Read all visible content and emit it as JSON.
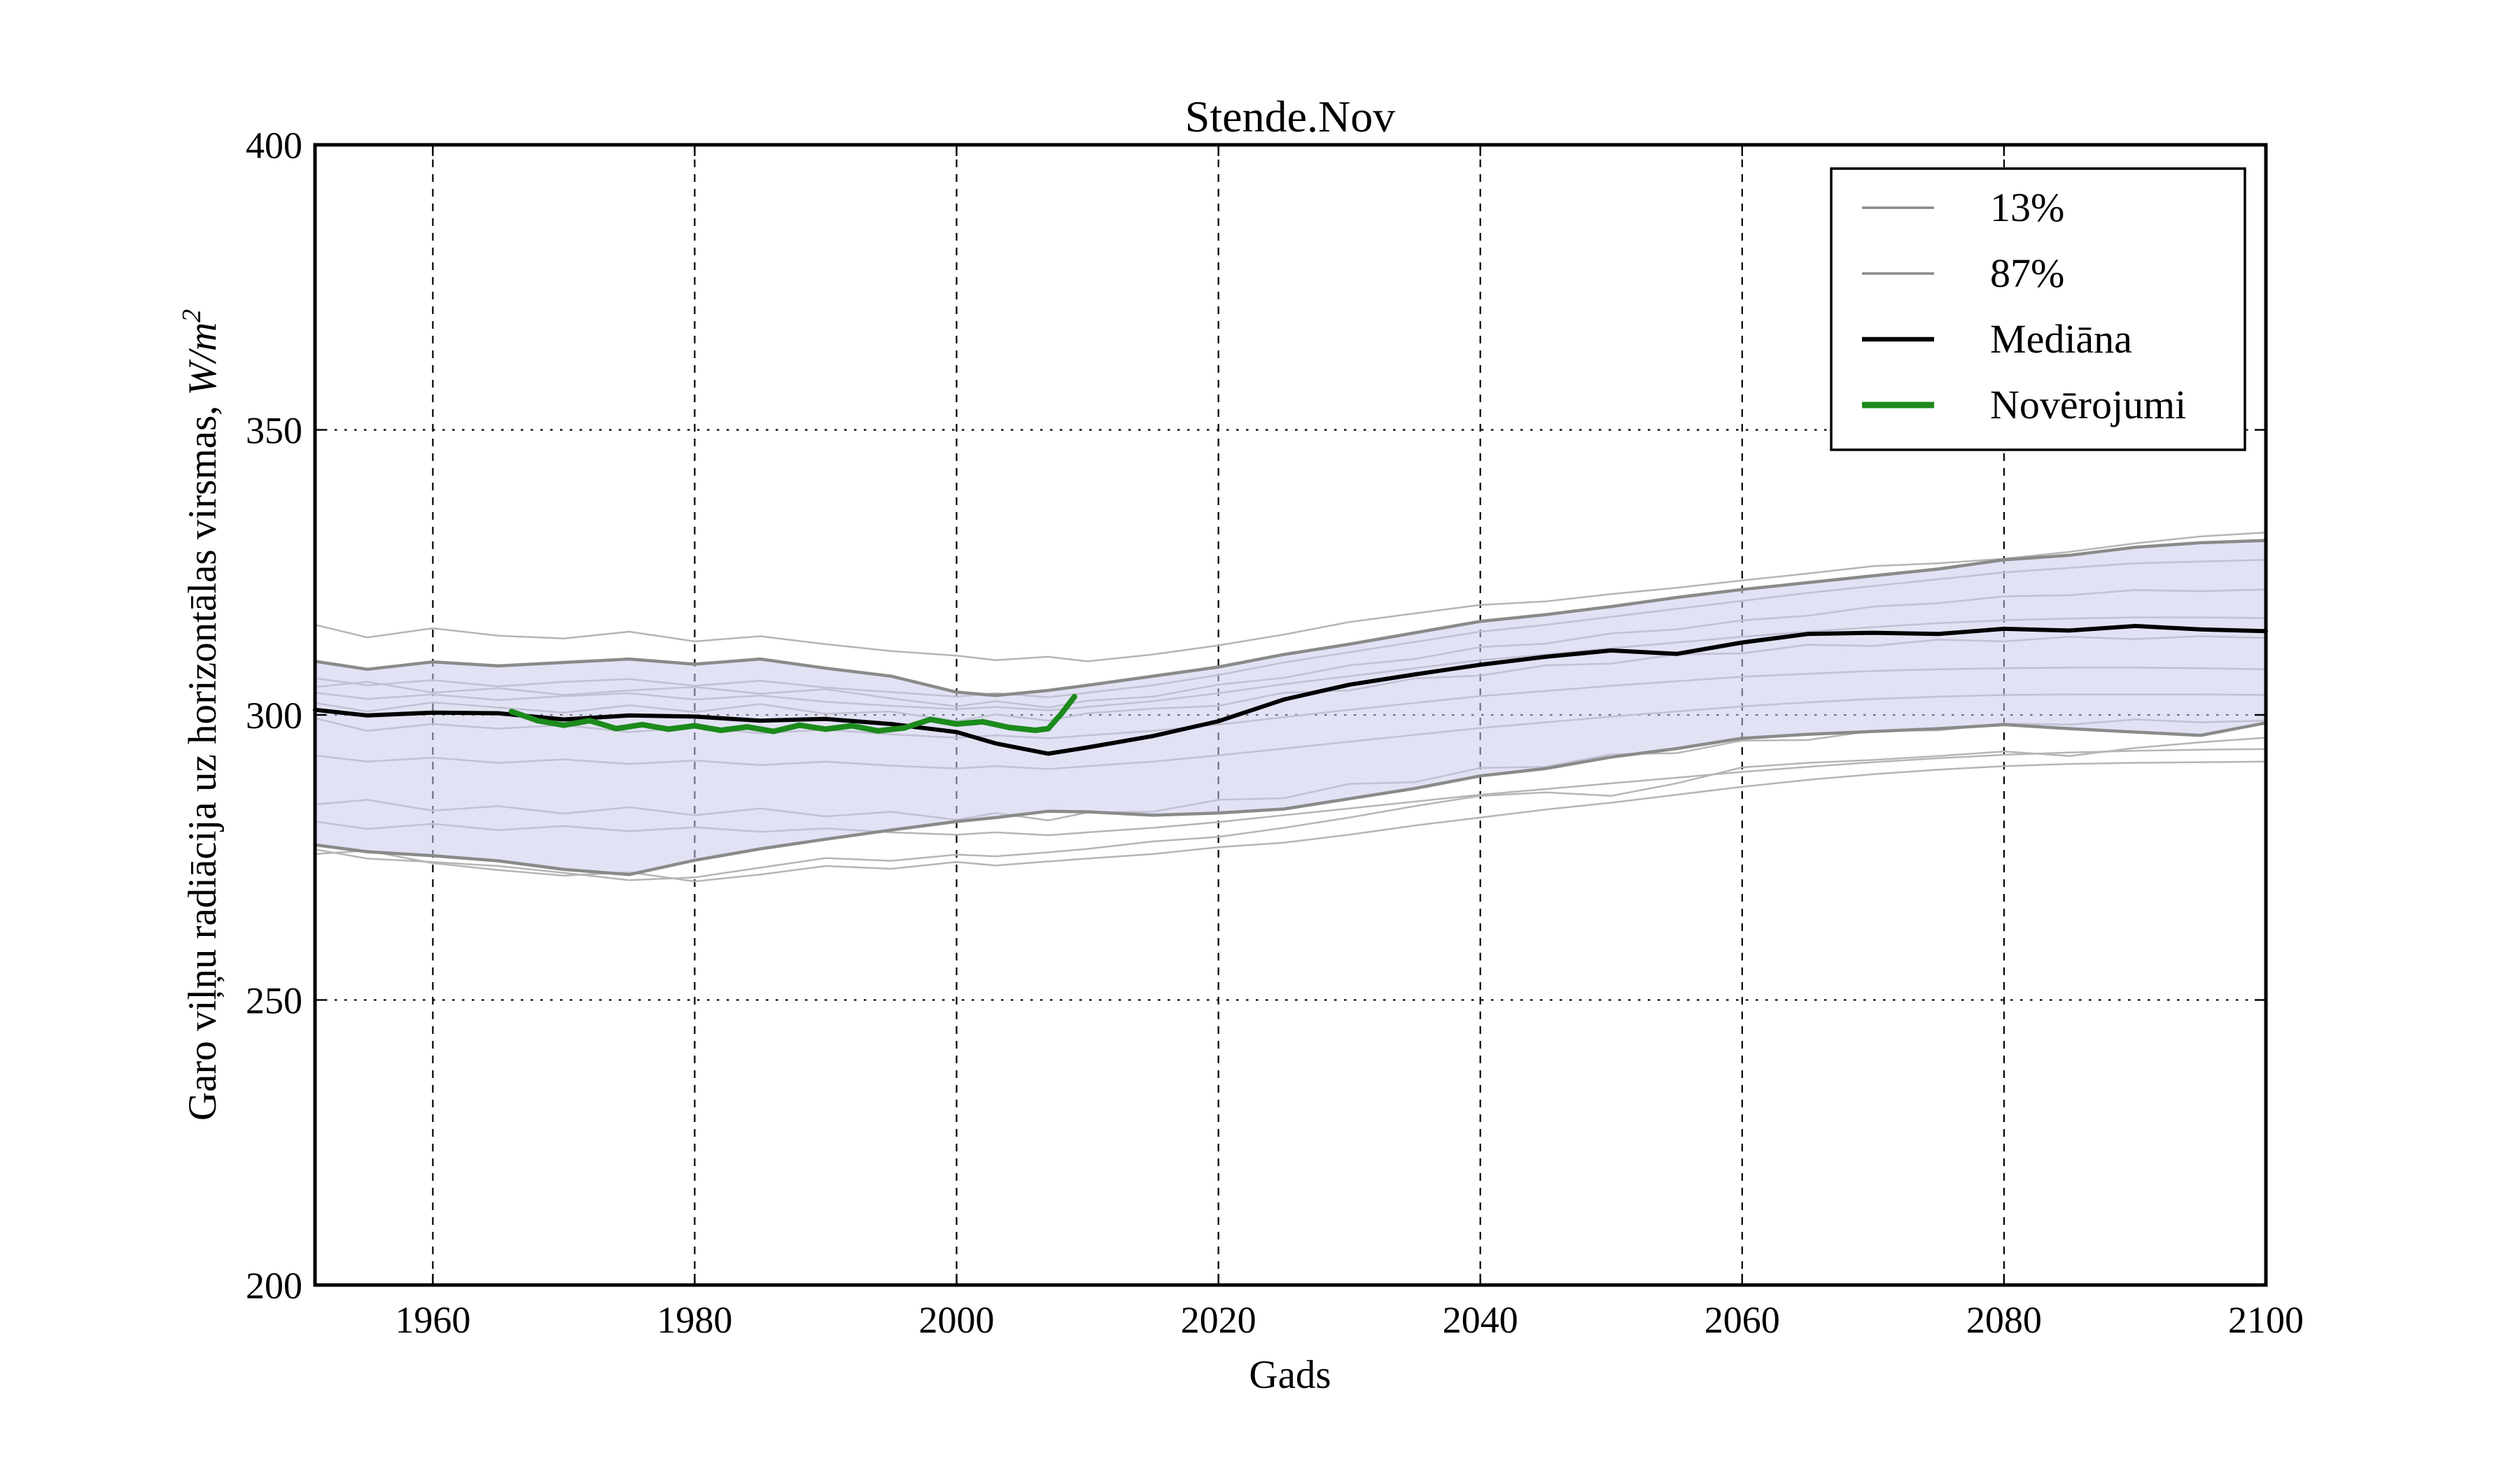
{
  "figure": {
    "title": "Stende.Nov",
    "xlabel": "Gads",
    "ylabel_text": "Garo viļņu radiācija uz horizontālas virsmas, ",
    "ylabel_math": "W/m",
    "ylabel_sup": "2"
  },
  "chart_data": {
    "type": "line",
    "title": "Stende.Nov",
    "xlabel": "Gads",
    "ylabel": "Garo viļņu radiācija uz horizontālas virsmas, W/m²",
    "xlim": [
      1951,
      2100
    ],
    "ylim": [
      200,
      400
    ],
    "xticks": [
      1960,
      1980,
      2000,
      2020,
      2040,
      2060,
      2080,
      2100
    ],
    "yticks": [
      200,
      250,
      300,
      350,
      400
    ],
    "grid": {
      "x_style": "dashed",
      "y_style": "dotted",
      "color": "#000000"
    },
    "colors": {
      "band_fill": "rgba(203,203,237,0.55)",
      "band_edge": "#8a8a8a",
      "ensemble_run": "#b5b5b5",
      "median": "#000000",
      "observations": "#1c8a1c"
    },
    "x": [
      1951,
      1955,
      1960,
      1965,
      1970,
      1975,
      1980,
      1985,
      1990,
      1995,
      2000,
      2003,
      2007,
      2010,
      2015,
      2020,
      2025,
      2030,
      2035,
      2040,
      2045,
      2050,
      2055,
      2060,
      2065,
      2070,
      2075,
      2080,
      2085,
      2090,
      2095,
      2100
    ],
    "series": [
      {
        "name": "13%",
        "role": "lower_percentile",
        "color": "#8a8a8a",
        "width": 4.5,
        "values": [
          277.2,
          276.0,
          275.3,
          274.4,
          272.9,
          272.0,
          274.5,
          276.5,
          278.2,
          279.8,
          281.3,
          282.0,
          283.1,
          283.0,
          282.4,
          282.8,
          283.5,
          285.3,
          287.1,
          289.3,
          290.6,
          292.6,
          294.1,
          295.9,
          296.6,
          297.1,
          297.6,
          298.3,
          297.6,
          297.0,
          296.4,
          298.6
        ]
      },
      {
        "name": "87%",
        "role": "upper_percentile",
        "color": "#8a8a8a",
        "width": 4.5,
        "values": [
          309.4,
          308.0,
          309.3,
          308.6,
          309.2,
          309.8,
          308.9,
          309.8,
          308.2,
          306.8,
          304.0,
          303.4,
          304.3,
          305.2,
          306.8,
          308.4,
          310.6,
          312.4,
          314.4,
          316.4,
          317.6,
          319.0,
          320.6,
          322.0,
          323.2,
          324.4,
          325.6,
          327.2,
          328.0,
          329.4,
          330.2,
          330.6
        ]
      },
      {
        "name": "Mediāna",
        "role": "median",
        "color": "#000000",
        "width": 6,
        "values": [
          300.9,
          299.9,
          300.4,
          300.3,
          299.2,
          299.9,
          299.7,
          299.0,
          299.3,
          298.4,
          297.0,
          295.0,
          293.2,
          294.3,
          296.3,
          298.9,
          302.7,
          305.3,
          307.1,
          308.8,
          310.2,
          311.3,
          310.7,
          312.7,
          314.2,
          314.4,
          314.2,
          315.1,
          314.8,
          315.6,
          315.0,
          314.7
        ]
      }
    ],
    "ensemble": {
      "color": "#b5b5b5",
      "width": 2.5,
      "lines": [
        [
          315.8,
          313.6,
          315.2,
          313.9,
          313.4,
          314.6,
          312.9,
          313.8,
          312.4,
          311.2,
          310.4,
          309.6,
          310.2,
          309.4,
          310.6,
          312.2,
          314.1,
          316.3,
          317.8,
          319.3,
          319.9,
          321.2,
          322.3,
          323.6,
          324.8,
          326.1,
          326.6,
          327.4,
          328.6,
          330.1,
          331.3,
          332.0
        ],
        [
          306.4,
          305.2,
          306.1,
          305.0,
          305.8,
          306.3,
          305.1,
          306.0,
          304.8,
          304.0,
          303.2,
          303.8,
          303.1,
          303.9,
          305.2,
          307.0,
          309.2,
          311.0,
          312.8,
          314.6,
          315.8,
          317.2,
          318.6,
          320.0,
          321.4,
          322.6,
          323.8,
          325.0,
          325.8,
          326.6,
          326.9,
          327.2
        ],
        [
          304.9,
          305.8,
          303.9,
          304.7,
          303.5,
          304.3,
          304.9,
          303.7,
          304.5,
          302.9,
          301.5,
          302.4,
          301.3,
          302.5,
          303.2,
          305.3,
          306.5,
          308.7,
          309.8,
          311.9,
          312.5,
          314.3,
          315.0,
          316.6,
          317.4,
          319.0,
          319.6,
          320.8,
          321.0,
          321.9,
          321.7,
          322.0
        ],
        [
          303.9,
          302.8,
          303.6,
          302.6,
          303.3,
          303.8,
          302.7,
          303.4,
          302.3,
          301.6,
          301.0,
          301.4,
          300.8,
          301.4,
          302.4,
          303.8,
          305.4,
          306.8,
          308.2,
          309.6,
          310.6,
          311.7,
          312.7,
          313.7,
          314.6,
          315.4,
          316.1,
          316.6,
          316.9,
          317.1,
          317.1,
          317.0
        ],
        [
          302.1,
          300.6,
          302.2,
          301.3,
          300.4,
          301.7,
          300.5,
          301.9,
          300.2,
          300.6,
          298.9,
          300.1,
          299.0,
          300.3,
          301.1,
          301.6,
          303.9,
          304.3,
          306.4,
          306.9,
          308.7,
          309.0,
          310.6,
          310.8,
          312.3,
          312.1,
          313.2,
          312.9,
          313.7,
          313.3,
          313.8,
          313.5
        ],
        [
          299.4,
          297.2,
          298.4,
          297.6,
          298.2,
          297.0,
          297.8,
          296.8,
          297.4,
          296.6,
          296.0,
          296.4,
          295.9,
          296.4,
          297.2,
          298.3,
          299.6,
          300.9,
          302.1,
          303.3,
          304.2,
          305.1,
          305.9,
          306.7,
          307.2,
          307.7,
          308.0,
          308.2,
          308.3,
          308.3,
          308.2,
          308.0
        ],
        [
          292.9,
          291.8,
          292.5,
          291.6,
          292.2,
          291.4,
          292.0,
          291.2,
          291.8,
          291.1,
          290.6,
          291.0,
          290.5,
          291.0,
          291.8,
          292.9,
          294.1,
          295.3,
          296.5,
          297.7,
          298.7,
          299.7,
          300.6,
          301.5,
          302.2,
          302.8,
          303.2,
          303.5,
          303.6,
          303.6,
          303.6,
          303.5
        ],
        [
          284.3,
          285.1,
          283.2,
          284.0,
          282.7,
          283.8,
          282.4,
          283.6,
          282.2,
          283.0,
          281.6,
          282.8,
          281.5,
          282.9,
          283.0,
          285.1,
          285.4,
          287.9,
          288.2,
          290.7,
          290.9,
          293.1,
          293.3,
          295.5,
          295.6,
          297.2,
          297.3,
          298.5,
          298.3,
          299.2,
          298.7,
          299.0
        ],
        [
          281.3,
          280.0,
          280.9,
          279.8,
          280.5,
          279.6,
          280.3,
          279.5,
          280.1,
          279.4,
          279.0,
          279.4,
          278.9,
          279.4,
          280.2,
          281.2,
          282.4,
          283.6,
          284.8,
          286.0,
          287.0,
          288.0,
          289.0,
          290.0,
          290.9,
          291.7,
          292.4,
          293.0,
          293.4,
          293.7,
          293.9,
          294.0
        ],
        [
          276.4,
          274.8,
          274.2,
          273.5,
          272.3,
          271.0,
          271.5,
          273.2,
          274.9,
          274.4,
          275.5,
          275.2,
          275.9,
          276.5,
          277.8,
          278.6,
          280.2,
          282.0,
          284.0,
          285.8,
          286.4,
          285.8,
          288.0,
          290.8,
          291.6,
          292.1,
          292.8,
          293.6,
          292.8,
          294.2,
          295.2,
          296.0
        ],
        [
          275.6,
          276.2,
          274.0,
          272.8,
          271.8,
          272.4,
          270.8,
          272.0,
          273.5,
          273.0,
          274.2,
          273.6,
          274.3,
          274.8,
          275.6,
          276.8,
          277.6,
          279.0,
          280.6,
          282.0,
          283.4,
          284.6,
          286.0,
          287.4,
          288.6,
          289.6,
          290.4,
          291.0,
          291.4,
          291.6,
          291.7,
          291.8
        ]
      ]
    },
    "observations": {
      "name": "Novērojumi",
      "color": "#1c8a1c",
      "width": 8,
      "x": [
        1966,
        1968,
        1970,
        1972,
        1974,
        1976,
        1978,
        1980,
        1982,
        1984,
        1986,
        1988,
        1990,
        1992,
        1994,
        1996,
        1998,
        2000,
        2002,
        2004,
        2006,
        2007,
        2008,
        2009
      ],
      "values": [
        300.6,
        299.0,
        298.2,
        299.0,
        297.6,
        298.3,
        297.5,
        298.1,
        297.3,
        297.9,
        297.1,
        298.2,
        297.5,
        298.1,
        297.2,
        297.7,
        299.2,
        298.4,
        298.8,
        297.8,
        297.3,
        297.6,
        300.2,
        303.2
      ]
    },
    "legend": {
      "position": "upper right",
      "entries": [
        {
          "label": "13%",
          "color": "#8a8a8a",
          "lw": 3.5
        },
        {
          "label": "87%",
          "color": "#8a8a8a",
          "lw": 3.5
        },
        {
          "label": "Mediāna",
          "color": "#000000",
          "lw": 6.5
        },
        {
          "label": "Novērojumi",
          "color": "#1c8a1c",
          "lw": 9
        }
      ]
    }
  }
}
